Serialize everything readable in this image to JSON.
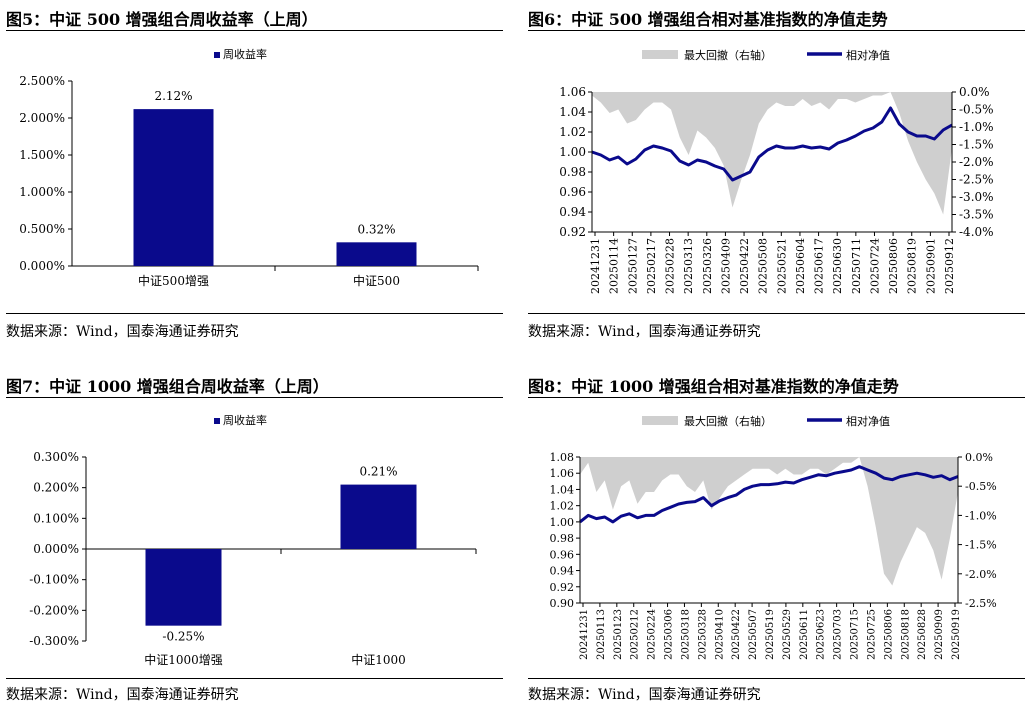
{
  "source_label": "数据来源：Wind，国泰海通证券研究",
  "colors": {
    "bar": "#0a0a8c",
    "line": "#0a0a8c",
    "area": "#cfcfcf"
  },
  "fig5": {
    "title": "图5：中证 500 增强组合周收益率（上周）",
    "chart_data": {
      "type": "bar",
      "categories": [
        "中证500增强",
        "中证500"
      ],
      "values": [
        2.12,
        0.32
      ],
      "value_labels": [
        "2.12%",
        "0.32%"
      ],
      "legend": "周收益率",
      "ylim": [
        0,
        2.5
      ],
      "yticks": [
        "0.000%",
        "0.500%",
        "1.000%",
        "1.500%",
        "2.000%",
        "2.500%"
      ]
    }
  },
  "fig6": {
    "title": "图6：中证 500 增强组合相对基准指数的净值走势",
    "chart_data": {
      "type": "line",
      "legend": [
        "最大回撤（右轴）",
        "相对净值"
      ],
      "left_ylim": [
        0.92,
        1.06
      ],
      "left_yticks": [
        "0.92",
        "0.94",
        "0.96",
        "0.98",
        "1.00",
        "1.02",
        "1.04",
        "1.06"
      ],
      "right_ylim": [
        -4.0,
        0.0
      ],
      "right_yticks": [
        "-4.0%",
        "-3.5%",
        "-3.0%",
        "-2.5%",
        "-2.0%",
        "-1.5%",
        "-1.0%",
        "-0.5%",
        "0.0%"
      ],
      "xticks": [
        "20241231",
        "20250114",
        "20250127",
        "20250217",
        "20250228",
        "20250313",
        "20250326",
        "20250409",
        "20250422",
        "20250508",
        "20250521",
        "20250604",
        "20250617",
        "20250630",
        "20250711",
        "20250724",
        "20250806",
        "20250819",
        "20250901",
        "20250912"
      ],
      "series": [
        {
          "name": "相对净值",
          "axis": "left",
          "values": [
            1.0,
            0.997,
            0.992,
            0.995,
            0.988,
            0.993,
            1.002,
            1.006,
            1.004,
            1.001,
            0.991,
            0.987,
            0.992,
            0.99,
            0.986,
            0.983,
            0.972,
            0.976,
            0.98,
            0.995,
            1.002,
            1.006,
            1.004,
            1.004,
            1.006,
            1.004,
            1.005,
            1.003,
            1.009,
            1.012,
            1.016,
            1.021,
            1.024,
            1.03,
            1.044,
            1.028,
            1.02,
            1.016,
            1.016,
            1.013,
            1.022,
            1.027
          ]
        },
        {
          "name": "最大回撤（右轴）",
          "axis": "right",
          "values": [
            -0.1,
            -0.3,
            -0.6,
            -0.5,
            -0.9,
            -0.8,
            -0.5,
            -0.3,
            -0.3,
            -0.5,
            -1.3,
            -1.8,
            -1.1,
            -1.3,
            -1.6,
            -2.1,
            -3.3,
            -2.5,
            -1.8,
            -0.9,
            -0.5,
            -0.3,
            -0.4,
            -0.4,
            -0.2,
            -0.4,
            -0.3,
            -0.5,
            -0.2,
            -0.2,
            -0.3,
            -0.2,
            -0.1,
            -0.1,
            0.0,
            -0.6,
            -1.4,
            -2.0,
            -2.5,
            -2.9,
            -3.5,
            -1.6
          ]
        }
      ]
    }
  },
  "fig7": {
    "title": "图7：中证 1000 增强组合周收益率（上周）",
    "chart_data": {
      "type": "bar",
      "categories": [
        "中证1000增强",
        "中证1000"
      ],
      "values": [
        -0.25,
        0.21
      ],
      "value_labels": [
        "-0.25%",
        "0.21%"
      ],
      "legend": "周收益率",
      "ylim": [
        -0.3,
        0.3
      ],
      "yticks": [
        "-0.300%",
        "-0.200%",
        "-0.100%",
        "0.000%",
        "0.100%",
        "0.200%",
        "0.300%"
      ]
    }
  },
  "fig8": {
    "title": "图8：中证 1000 增强组合相对基准指数的净值走势",
    "chart_data": {
      "type": "line",
      "legend": [
        "最大回撤（右轴）",
        "相对净值"
      ],
      "left_ylim": [
        0.9,
        1.08
      ],
      "left_yticks": [
        "0.90",
        "0.92",
        "0.94",
        "0.96",
        "0.98",
        "1.00",
        "1.02",
        "1.04",
        "1.06",
        "1.08"
      ],
      "right_ylim": [
        -2.5,
        0.0
      ],
      "right_yticks": [
        "-2.5%",
        "-2.0%",
        "-1.5%",
        "-1.0%",
        "-0.5%",
        "0.0%"
      ],
      "xticks": [
        "20241231",
        "20250113",
        "20250123",
        "20250212",
        "20250224",
        "20250306",
        "20250318",
        "20250328",
        "20250410",
        "20250422",
        "20250507",
        "20250519",
        "20250529",
        "20250611",
        "20250623",
        "20250703",
        "20250715",
        "20250725",
        "20250806",
        "20250818",
        "20250828",
        "20250909",
        "20250919"
      ],
      "series": [
        {
          "name": "相对净值",
          "axis": "left",
          "values": [
            1.0,
            1.008,
            1.004,
            1.006,
            1.0,
            1.007,
            1.01,
            1.005,
            1.008,
            1.008,
            1.014,
            1.018,
            1.022,
            1.024,
            1.025,
            1.03,
            1.02,
            1.026,
            1.03,
            1.033,
            1.04,
            1.044,
            1.046,
            1.046,
            1.047,
            1.049,
            1.048,
            1.052,
            1.055,
            1.058,
            1.057,
            1.06,
            1.062,
            1.064,
            1.068,
            1.064,
            1.06,
            1.054,
            1.052,
            1.056,
            1.058,
            1.06,
            1.058,
            1.055,
            1.057,
            1.052,
            1.056
          ]
        },
        {
          "name": "最大回撤（右轴）",
          "axis": "right",
          "values": [
            -0.3,
            -0.1,
            -0.6,
            -0.4,
            -0.9,
            -0.5,
            -0.4,
            -0.8,
            -0.6,
            -0.6,
            -0.4,
            -0.3,
            -0.3,
            -0.5,
            -0.6,
            -0.4,
            -0.9,
            -0.7,
            -0.5,
            -0.4,
            -0.3,
            -0.2,
            -0.2,
            -0.2,
            -0.3,
            -0.2,
            -0.3,
            -0.3,
            -0.2,
            -0.2,
            -0.3,
            -0.2,
            -0.1,
            -0.1,
            0.0,
            -0.5,
            -1.2,
            -2.0,
            -2.2,
            -1.8,
            -1.5,
            -1.2,
            -1.3,
            -1.6,
            -2.1,
            -1.4,
            -0.6
          ]
        }
      ]
    }
  }
}
